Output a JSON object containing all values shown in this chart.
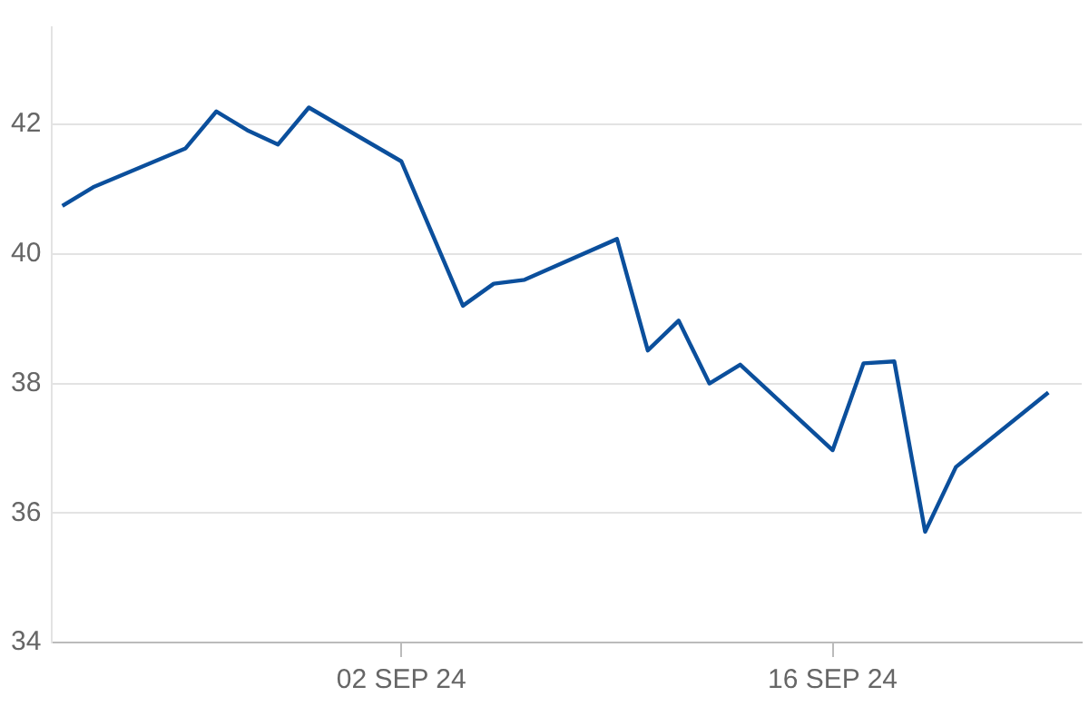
{
  "chart_data": {
    "type": "line",
    "x": [
      "--08-22",
      "--08-23",
      "--08-26",
      "--08-27",
      "--08-28",
      "--08-29",
      "--08-30",
      "--09-02",
      "--09-04",
      "--09-05",
      "--09-06",
      "--09-09",
      "--09-10",
      "--09-11",
      "--09-12",
      "--09-13",
      "--09-16",
      "--09-17",
      "--09-18",
      "--09-19",
      "--09-20",
      "--09-23"
    ],
    "series": [
      {
        "color": "#0b4f9c",
        "values": [
          40.74,
          41.03,
          41.63,
          42.2,
          41.91,
          41.69,
          42.26,
          41.43,
          39.2,
          39.54,
          39.6,
          40.23,
          38.51,
          38.97,
          38.0,
          38.29,
          36.97,
          38.31,
          38.34,
          35.71,
          36.71,
          37.86
        ]
      }
    ],
    "xlim": [
      "--08-21T16:00",
      "--09-24T02:00"
    ],
    "xticks": [
      {
        "value": "--09-02",
        "label": "02 SEP 24"
      },
      {
        "value": "--09-16",
        "label": "16 SEP 24"
      }
    ],
    "ylim": [
      34,
      43.5
    ],
    "yticks": [
      34,
      36,
      38,
      40,
      42
    ],
    "grid": "y",
    "legend": false,
    "marker": "none",
    "line_style": "solid"
  }
}
